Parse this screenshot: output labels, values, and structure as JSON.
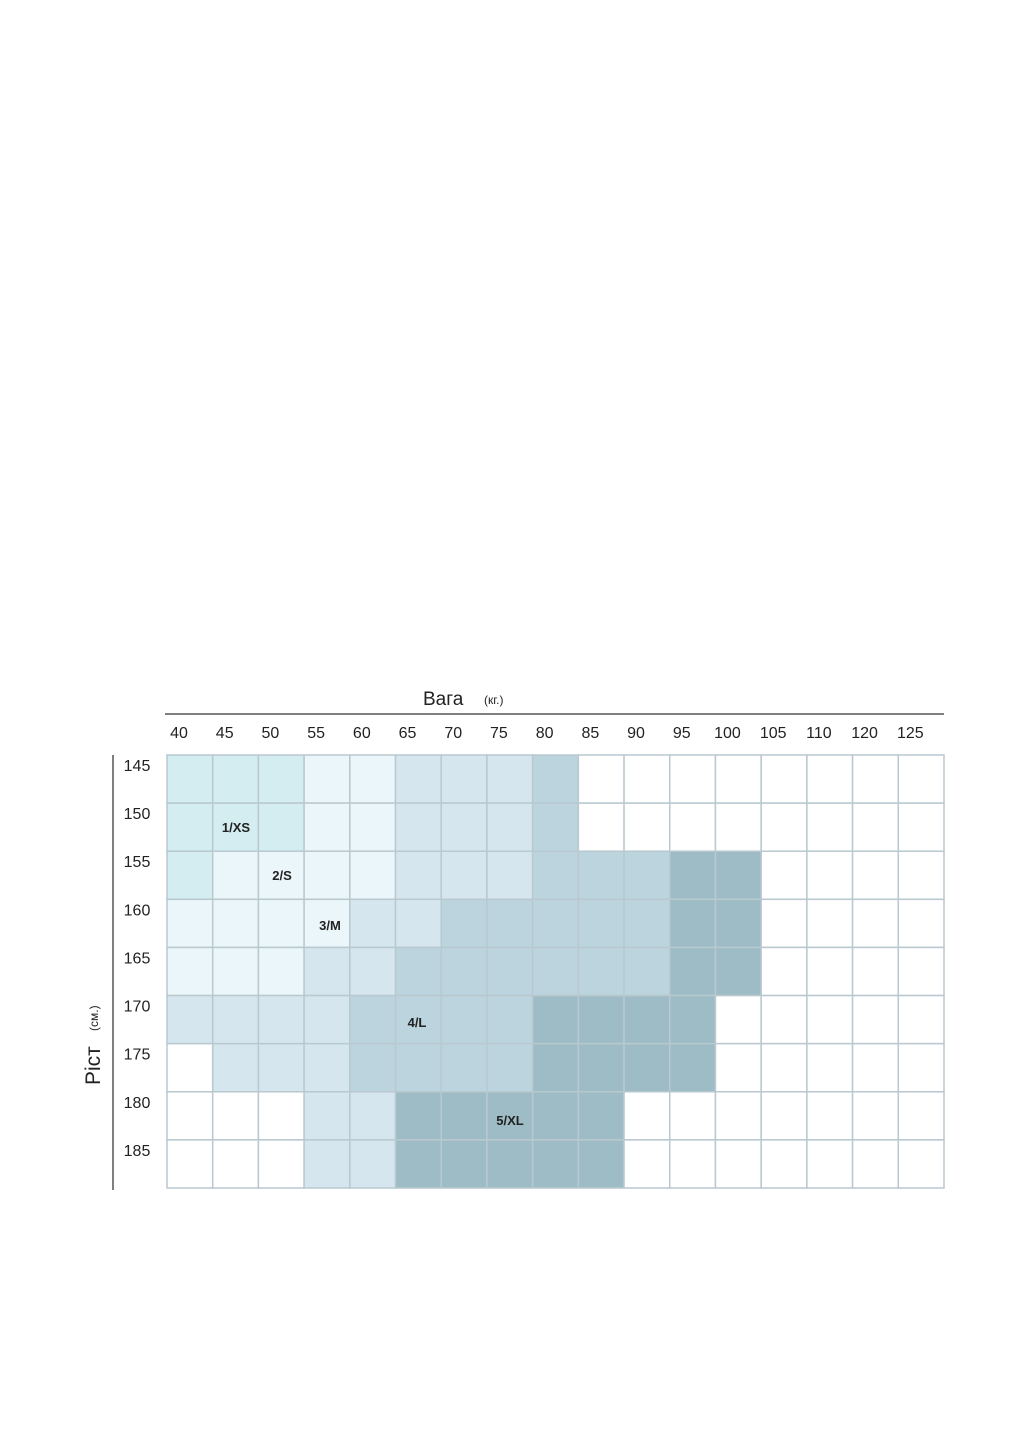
{
  "weight": {
    "title": "Вага",
    "unit": "(кг.)",
    "labels": [
      "40",
      "45",
      "50",
      "55",
      "60",
      "65",
      "70",
      "75",
      "80",
      "85",
      "90",
      "95",
      "100",
      "105",
      "110",
      "120",
      "125"
    ]
  },
  "height": {
    "title": "Ріст",
    "unit": "(см.)",
    "labels": [
      "145",
      "150",
      "155",
      "160",
      "165",
      "170",
      "175",
      "180",
      "185"
    ]
  },
  "sizes": [
    "1/XS",
    "2/S",
    "3/M",
    "4/L",
    "5/XL"
  ]
}
